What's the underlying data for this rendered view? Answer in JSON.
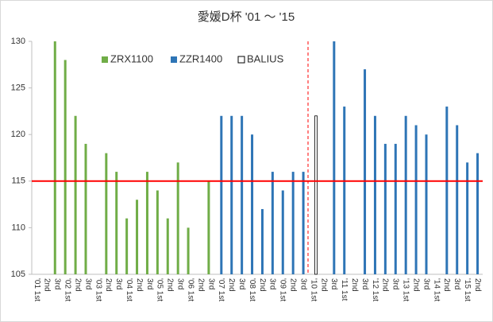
{
  "chart_data": {
    "type": "bar",
    "title": "愛媛D杯 '01 ～ '15",
    "categories": [
      "'01 1st",
      "2nd",
      "3rd",
      "'02 1st",
      "2nd",
      "3rd",
      "'03 1st",
      "2nd",
      "3rd",
      "'04 1st",
      "2nd",
      "3rd",
      "'05 1st",
      "2nd",
      "3rd",
      "'06 1st",
      "2nd",
      "3rd",
      "'07 1st",
      "2nd",
      "3rd",
      "'08 1st",
      "2nd",
      "3rd",
      "'09 1st",
      "2nd",
      "3rd",
      "'10 1st",
      "2nd",
      "3rd",
      "'11 1st",
      "2nd",
      "3rd",
      "'12 1st",
      "2nd",
      "3rd",
      "'13 1st",
      "2nd",
      "3rd",
      "'14 1st",
      "2nd",
      "3rd",
      "'15 1st",
      "2nd"
    ],
    "series": [
      {
        "name": "ZRX1100",
        "color": "#70ad47",
        "values": [
          null,
          null,
          130,
          128,
          122,
          119,
          null,
          118,
          116,
          111,
          113,
          116,
          114,
          111,
          117,
          110,
          null,
          115,
          null,
          null,
          null,
          null,
          null,
          null,
          null,
          null,
          null,
          null,
          null,
          null,
          null,
          null,
          null,
          null,
          null,
          null,
          null,
          null,
          null,
          null,
          null,
          null,
          null,
          null
        ]
      },
      {
        "name": "ZZR1400",
        "color": "#2e75b6",
        "values": [
          null,
          null,
          null,
          null,
          null,
          null,
          null,
          null,
          null,
          null,
          null,
          null,
          null,
          null,
          null,
          null,
          null,
          null,
          122,
          122,
          122,
          120,
          112,
          116,
          114,
          116,
          116,
          null,
          null,
          130,
          123,
          null,
          127,
          122,
          119,
          119,
          122,
          121,
          120,
          null,
          123,
          121,
          117,
          118
        ]
      },
      {
        "name": "BALIUS",
        "color": "#ffffff",
        "values": [
          null,
          null,
          null,
          null,
          null,
          null,
          null,
          null,
          null,
          null,
          null,
          null,
          null,
          null,
          null,
          null,
          null,
          null,
          null,
          null,
          null,
          null,
          null,
          null,
          null,
          null,
          null,
          122,
          null,
          null,
          null,
          null,
          null,
          null,
          null,
          null,
          null,
          null,
          null,
          null,
          null,
          null,
          null,
          null
        ]
      }
    ],
    "ylim": [
      105,
      130
    ],
    "yticks": [
      105,
      110,
      115,
      120,
      125,
      130
    ],
    "reference_line": {
      "value": 115,
      "color": "#ff0000"
    },
    "legend": "top",
    "grid": false
  }
}
